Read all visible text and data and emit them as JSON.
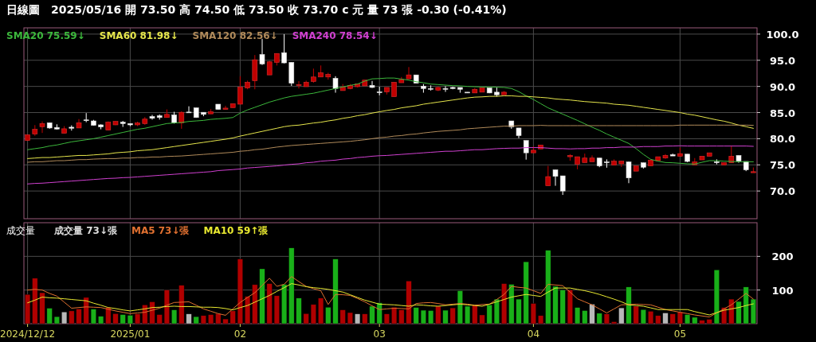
{
  "chart_data": [
    {
      "type": "candlestick",
      "title": "日線圖",
      "subtitle": "2025/05/16 開 73.50 高 74.50 低 73.50 收 73.70 c 元 量 73 張 -0.30 (-0.41%)",
      "categories": [
        "2024/12/12",
        null,
        null,
        null,
        null,
        null,
        null,
        null,
        null,
        null,
        null,
        null,
        null,
        null,
        "2025/01",
        null,
        null,
        null,
        null,
        null,
        null,
        null,
        null,
        null,
        null,
        null,
        null,
        null,
        null,
        "02",
        null,
        null,
        null,
        null,
        null,
        null,
        null,
        null,
        null,
        null,
        null,
        null,
        null,
        null,
        null,
        null,
        null,
        null,
        "03",
        null,
        null,
        null,
        null,
        null,
        null,
        null,
        null,
        null,
        null,
        null,
        null,
        null,
        null,
        null,
        null,
        null,
        null,
        null,
        null,
        "04",
        null,
        null,
        null,
        null,
        null,
        null,
        null,
        null,
        null,
        null,
        null,
        null,
        null,
        null,
        null,
        null,
        null,
        null,
        null,
        "05",
        null,
        null,
        null,
        null,
        null,
        null,
        null,
        null,
        null,
        null
      ],
      "ohlc": [
        [
          79.65,
          80.8,
          79.6,
          80.75
        ],
        [
          80.9,
          82.6,
          80.55,
          81.8
        ],
        [
          82.3,
          83.3,
          81.1,
          82.9
        ],
        [
          83.05,
          83.05,
          81.9,
          82.05
        ],
        [
          82.15,
          82.75,
          81.75,
          81.85
        ],
        [
          81.05,
          82.4,
          81.0,
          81.9
        ],
        [
          82.2,
          82.55,
          81.55,
          82.0
        ],
        [
          82.05,
          83.75,
          82.05,
          83.05
        ],
        [
          83.6,
          84.9,
          83.15,
          83.55
        ],
        [
          83.4,
          83.6,
          82.5,
          82.55
        ],
        [
          82.65,
          82.75,
          81.8,
          82.25
        ],
        [
          81.65,
          83.3,
          81.6,
          83.15
        ],
        [
          82.65,
          83.35,
          82.6,
          83.3
        ],
        [
          83.15,
          83.4,
          82.25,
          82.9
        ],
        [
          82.9,
          82.9,
          82.4,
          82.65
        ],
        [
          82.65,
          83.25,
          82.4,
          83.0
        ],
        [
          82.9,
          84.15,
          82.65,
          83.75
        ],
        [
          84.25,
          84.55,
          83.65,
          83.9
        ],
        [
          84.4,
          84.65,
          83.65,
          84.05
        ],
        [
          84.05,
          85.6,
          84.05,
          84.65
        ],
        [
          84.55,
          85.15,
          82.9,
          83.05
        ],
        [
          83.05,
          85.25,
          81.9,
          85.05
        ],
        [
          85.1,
          86.2,
          85.0,
          85.05
        ],
        [
          85.9,
          85.9,
          84.0,
          84.05
        ],
        [
          85.05,
          85.05,
          84.3,
          84.65
        ],
        [
          84.75,
          85.65,
          84.75,
          85.15
        ],
        [
          86.6,
          86.6,
          85.6,
          85.6
        ],
        [
          85.6,
          86.3,
          85.6,
          85.85
        ],
        [
          85.95,
          86.7,
          85.9,
          86.7
        ],
        [
          86.6,
          91.95,
          86.6,
          89.85
        ],
        [
          89.7,
          91.1,
          89.45,
          90.8
        ],
        [
          91.1,
          96.0,
          89.45,
          95.1
        ],
        [
          96.1,
          99.1,
          94.1,
          94.3
        ],
        [
          92.2,
          94.9,
          92.2,
          94.7
        ],
        [
          94.6,
          96.3,
          94.0,
          96.3
        ],
        [
          96.45,
          100.0,
          94.4,
          94.5
        ],
        [
          94.6,
          94.6,
          90.1,
          90.6
        ],
        [
          90.3,
          91.0,
          89.6,
          90.35
        ],
        [
          89.95,
          91.1,
          89.95,
          90.8
        ],
        [
          90.95,
          93.4,
          90.7,
          91.8
        ],
        [
          91.8,
          94.0,
          91.8,
          92.6
        ],
        [
          91.8,
          92.6,
          91.3,
          92.3
        ],
        [
          91.55,
          91.95,
          88.8,
          89.6
        ],
        [
          89.2,
          90.45,
          89.2,
          89.85
        ],
        [
          89.6,
          90.45,
          89.45,
          90.2
        ],
        [
          89.95,
          90.45,
          89.8,
          90.45
        ],
        [
          90.1,
          91.2,
          90.1,
          91.2
        ],
        [
          90.2,
          91.05,
          89.7,
          89.8
        ],
        [
          88.95,
          89.95,
          88.3,
          88.8
        ],
        [
          88.95,
          89.8,
          88.45,
          89.8
        ],
        [
          88.05,
          90.8,
          88.05,
          90.8
        ],
        [
          90.7,
          91.8,
          90.7,
          91.3
        ],
        [
          91.45,
          93.7,
          91.45,
          92.2
        ],
        [
          92.2,
          92.2,
          90.6,
          90.6
        ],
        [
          90.05,
          90.45,
          88.8,
          89.6
        ],
        [
          89.6,
          90.2,
          89.2,
          89.45
        ],
        [
          89.3,
          89.95,
          89.1,
          89.8
        ],
        [
          89.6,
          90.05,
          88.95,
          89.45
        ],
        [
          89.8,
          89.95,
          89.45,
          89.6
        ],
        [
          89.8,
          89.8,
          88.8,
          89.45
        ],
        [
          88.9,
          88.9,
          88.75,
          88.75
        ],
        [
          88.75,
          89.7,
          88.75,
          89.45
        ],
        [
          88.9,
          89.7,
          88.9,
          89.7
        ],
        [
          89.7,
          89.7,
          88.7,
          88.75
        ],
        [
          88.9,
          89.8,
          88.05,
          88.4
        ],
        [
          88.4,
          89.1,
          88.4,
          88.9
        ],
        [
          83.4,
          83.4,
          81.9,
          82.25
        ],
        [
          82.05,
          82.05,
          80.1,
          80.6
        ],
        [
          79.65,
          79.65,
          76.0,
          77.3
        ],
        [
          77.3,
          78.55,
          77.3,
          77.8
        ],
        [
          78.05,
          78.8,
          78.05,
          78.8
        ],
        [
          71.0,
          74.8,
          71.0,
          72.75
        ],
        [
          74.05,
          74.05,
          71.0,
          72.8
        ],
        [
          72.9,
          72.9,
          69.25,
          70.0
        ],
        [
          76.55,
          77.05,
          75.8,
          76.8
        ],
        [
          75.15,
          76.55,
          74.15,
          76.55
        ],
        [
          75.45,
          77.15,
          75.45,
          76.3
        ],
        [
          75.6,
          76.8,
          75.6,
          76.3
        ],
        [
          76.3,
          76.3,
          74.55,
          74.8
        ],
        [
          75.55,
          76.05,
          74.45,
          75.4
        ],
        [
          74.95,
          76.05,
          74.95,
          75.7
        ],
        [
          75.2,
          75.8,
          74.6,
          75.7
        ],
        [
          75.55,
          75.65,
          71.5,
          72.5
        ],
        [
          73.8,
          74.8,
          73.8,
          74.8
        ],
        [
          75.4,
          75.4,
          74.3,
          74.55
        ],
        [
          74.8,
          76.05,
          74.8,
          75.9
        ],
        [
          75.8,
          76.55,
          75.8,
          76.55
        ],
        [
          76.3,
          77.05,
          76.15,
          76.8
        ],
        [
          76.95,
          77.15,
          76.7,
          76.7
        ],
        [
          76.65,
          78.3,
          76.65,
          77.15
        ],
        [
          77.05,
          77.05,
          75.5,
          75.65
        ],
        [
          75.0,
          76.3,
          75.0,
          75.55
        ],
        [
          75.95,
          76.65,
          75.95,
          76.65
        ],
        [
          76.65,
          77.3,
          76.65,
          77.3
        ],
        [
          75.6,
          76.05,
          75.1,
          75.4
        ],
        [
          75.0,
          75.4,
          75.0,
          75.4
        ],
        [
          75.4,
          78.7,
          75.4,
          76.65
        ],
        [
          76.8,
          76.8,
          75.4,
          75.7
        ],
        [
          75.65,
          75.65,
          73.8,
          74.05
        ],
        [
          73.5,
          74.5,
          73.5,
          73.7
        ]
      ],
      "colors": [
        "#c00000",
        "#c00000",
        "#c00000",
        "#ffffff",
        "#ffffff",
        "#c00000",
        "#ffffff",
        "#c00000",
        "#ffffff",
        "#ffffff",
        "#ffffff",
        "#c00000",
        "#c00000",
        "#ffffff",
        "#ffffff",
        "#c00000",
        "#c00000",
        "#ffffff",
        "#ffffff",
        "#c00000",
        "#ffffff",
        "#c00000",
        "#ffffff",
        "#ffffff",
        "#ffffff",
        "#c00000",
        "#ffffff",
        "#c00000",
        "#c00000",
        "#c00000",
        "#c00000",
        "#c00000",
        "#ffffff",
        "#c00000",
        "#c00000",
        "#ffffff",
        "#ffffff",
        "#c00000",
        "#c00000",
        "#c00000",
        "#c00000",
        "#c00000",
        "#ffffff",
        "#c00000",
        "#c00000",
        "#c00000",
        "#c00000",
        "#ffffff",
        "#ffffff",
        "#c00000",
        "#c00000",
        "#c00000",
        "#c00000",
        "#ffffff",
        "#ffffff",
        "#ffffff",
        "#c00000",
        "#ffffff",
        "#ffffff",
        "#ffffff",
        "#ffffff",
        "#c00000",
        "#c00000",
        "#ffffff",
        "#ffffff",
        "#c00000",
        "#ffffff",
        "#ffffff",
        "#ffffff",
        "#c00000",
        "#c00000",
        "#c00000",
        "#ffffff",
        "#ffffff",
        "#c00000",
        "#c00000",
        "#c00000",
        "#c00000",
        "#ffffff",
        "#ffffff",
        "#c00000",
        "#c00000",
        "#ffffff",
        "#c00000",
        "#ffffff",
        "#c00000",
        "#c00000",
        "#c00000",
        "#ffffff",
        "#c00000",
        "#ffffff",
        "#c00000",
        "#c00000",
        "#c00000",
        "#ffffff",
        "#c00000",
        "#c00000",
        "#ffffff",
        "#ffffff",
        "#c00000"
      ],
      "series": [
        {
          "type": "line",
          "name": "SMA20 75.59↓",
          "color": "#3cb83c",
          "values": [
            77.9,
            78.1,
            78.3,
            78.6,
            78.8,
            79.1,
            79.4,
            79.6,
            79.8,
            80.0,
            80.3,
            80.6,
            80.9,
            81.2,
            81.5,
            81.8,
            82.0,
            82.3,
            82.6,
            82.9,
            83.0,
            83.1,
            83.3,
            83.4,
            83.5,
            83.7,
            83.8,
            83.9,
            84.05,
            84.9,
            85.5,
            86.0,
            86.5,
            87.0,
            87.4,
            87.8,
            88.1,
            88.3,
            88.5,
            88.7,
            89.0,
            89.3,
            89.6,
            89.9,
            90.2,
            90.45,
            91.0,
            91.45,
            91.5,
            91.6,
            91.6,
            91.4,
            91.2,
            90.9,
            90.7,
            90.45,
            90.35,
            90.25,
            90.15,
            90.1,
            90.0,
            89.95,
            89.9,
            89.9,
            89.85,
            89.8,
            89.6,
            89.0,
            88.2,
            87.5,
            86.7,
            85.9,
            85.3,
            84.7,
            84.1,
            83.5,
            82.85,
            82.2,
            81.6,
            80.9,
            80.3,
            79.7,
            79.1,
            78.1,
            77.0,
            76.05,
            75.7,
            75.45,
            75.4,
            75.3,
            75.2,
            75.15,
            75.5,
            75.8,
            75.8,
            75.7,
            75.65,
            75.6,
            75.6,
            75.59
          ]
        },
        {
          "type": "line",
          "name": "SMA60 81.98↓",
          "color": "#e6e64c",
          "values": [
            76.2,
            76.3,
            76.4,
            76.4,
            76.5,
            76.6,
            76.7,
            76.8,
            76.8,
            76.9,
            77.0,
            77.1,
            77.3,
            77.4,
            77.5,
            77.7,
            77.8,
            77.9,
            78.1,
            78.3,
            78.5,
            78.7,
            78.9,
            79.1,
            79.3,
            79.5,
            79.7,
            79.9,
            80.15,
            80.5,
            80.8,
            81.1,
            81.4,
            81.7,
            82.0,
            82.3,
            82.5,
            82.6,
            82.8,
            83.0,
            83.15,
            83.4,
            83.6,
            83.9,
            84.1,
            84.4,
            84.6,
            84.9,
            85.15,
            85.4,
            85.6,
            85.9,
            86.1,
            86.3,
            86.6,
            86.8,
            87.0,
            87.2,
            87.4,
            87.6,
            87.8,
            87.95,
            88.0,
            88.1,
            88.1,
            88.2,
            88.2,
            88.1,
            88.1,
            88.0,
            87.9,
            87.8,
            87.6,
            87.5,
            87.4,
            87.25,
            87.1,
            87.0,
            86.9,
            86.8,
            86.6,
            86.5,
            86.4,
            86.2,
            86.0,
            85.8,
            85.6,
            85.4,
            85.2,
            85.0,
            84.7,
            84.5,
            84.2,
            83.9,
            83.6,
            83.35,
            83.0,
            82.6,
            82.3,
            81.98
          ]
        },
        {
          "type": "line",
          "name": "SMA120 82.56↓",
          "color": "#b08a5a",
          "values": [
            75.5,
            75.6,
            75.6,
            75.7,
            75.8,
            75.8,
            75.9,
            76.0,
            76.0,
            76.1,
            76.15,
            76.2,
            76.2,
            76.3,
            76.3,
            76.4,
            76.4,
            76.5,
            76.5,
            76.6,
            76.65,
            76.7,
            76.8,
            76.9,
            77.0,
            77.1,
            77.2,
            77.3,
            77.4,
            77.6,
            77.7,
            77.9,
            78.0,
            78.2,
            78.4,
            78.55,
            78.7,
            78.8,
            78.9,
            79.0,
            79.1,
            79.2,
            79.3,
            79.4,
            79.5,
            79.65,
            79.8,
            80.0,
            80.2,
            80.3,
            80.5,
            80.6,
            80.8,
            80.9,
            81.1,
            81.25,
            81.4,
            81.5,
            81.6,
            81.7,
            81.9,
            82.0,
            82.1,
            82.2,
            82.3,
            82.4,
            82.4,
            82.5,
            82.5,
            82.5,
            82.55,
            82.5,
            82.5,
            82.5,
            82.5,
            82.5,
            82.5,
            82.5,
            82.5,
            82.5,
            82.5,
            82.5,
            82.5,
            82.5,
            82.5,
            82.5,
            82.5,
            82.5,
            82.5,
            82.6,
            82.6,
            82.6,
            82.6,
            82.6,
            82.6,
            82.6,
            82.6,
            82.6,
            82.6,
            82.56
          ]
        },
        {
          "type": "line",
          "name": "SMA240 78.54↓",
          "color": "#d040d0",
          "values": [
            71.35,
            71.45,
            71.5,
            71.6,
            71.7,
            71.8,
            71.9,
            72.0,
            72.1,
            72.2,
            72.3,
            72.4,
            72.45,
            72.55,
            72.6,
            72.7,
            72.8,
            72.9,
            73.0,
            73.1,
            73.2,
            73.3,
            73.4,
            73.5,
            73.6,
            73.7,
            73.9,
            74.0,
            74.1,
            74.2,
            74.4,
            74.5,
            74.6,
            74.7,
            74.8,
            74.95,
            75.1,
            75.2,
            75.4,
            75.5,
            75.7,
            75.8,
            75.9,
            76.1,
            76.2,
            76.4,
            76.5,
            76.65,
            76.75,
            76.8,
            76.9,
            77.0,
            77.1,
            77.2,
            77.3,
            77.4,
            77.5,
            77.6,
            77.6,
            77.7,
            77.8,
            77.9,
            77.9,
            78.0,
            78.1,
            78.15,
            78.2,
            78.2,
            78.3,
            78.3,
            78.3,
            78.2,
            78.1,
            78.1,
            78.05,
            78.1,
            78.1,
            78.2,
            78.2,
            78.3,
            78.3,
            78.4,
            78.4,
            78.4,
            78.5,
            78.5,
            78.5,
            78.6,
            78.6,
            78.65,
            78.6,
            78.6,
            78.6,
            78.6,
            78.6,
            78.6,
            78.6,
            78.6,
            78.6,
            78.54
          ]
        }
      ],
      "ylim": [
        64.7,
        101.2
      ],
      "yticks": [
        {
          "value": 70,
          "label": "70.0"
        },
        {
          "value": 75,
          "label": "75.0"
        },
        {
          "value": 80,
          "label": "80.0"
        },
        {
          "value": 85,
          "label": "85.0"
        },
        {
          "value": 90,
          "label": "90.0"
        },
        {
          "value": 95,
          "label": "95.0"
        },
        {
          "value": 100,
          "label": "100.0"
        }
      ],
      "grid": true,
      "legend": "top left",
      "tick_labels": "y"
    },
    {
      "type": "bar",
      "title": "成交量",
      "categories": [
        "2024/12/12",
        null,
        null,
        null,
        null,
        null,
        null,
        null,
        null,
        null,
        null,
        null,
        null,
        null,
        "2025/01",
        null,
        null,
        null,
        null,
        null,
        null,
        null,
        null,
        null,
        null,
        null,
        null,
        null,
        null,
        "02",
        null,
        null,
        null,
        null,
        null,
        null,
        null,
        null,
        null,
        null,
        null,
        null,
        null,
        null,
        null,
        null,
        null,
        null,
        "03",
        null,
        null,
        null,
        null,
        null,
        null,
        null,
        null,
        null,
        null,
        null,
        null,
        null,
        null,
        null,
        null,
        null,
        null,
        null,
        null,
        "04",
        null,
        null,
        null,
        null,
        null,
        null,
        null,
        null,
        null,
        null,
        null,
        null,
        null,
        null,
        null,
        null,
        null,
        null,
        null,
        "05",
        null,
        null,
        null,
        null,
        null,
        null,
        null,
        null,
        null,
        null
      ],
      "series": [
        {
          "name": "成交量 73↓張",
          "values": [
            87,
            135,
            92,
            46,
            21,
            35,
            38,
            44,
            78,
            43,
            22,
            48,
            30,
            27,
            25,
            29,
            56,
            65,
            27,
            100,
            41,
            114,
            29,
            21,
            24,
            27,
            30,
            14,
            38,
            192,
            81,
            116,
            163,
            119,
            83,
            117,
            225,
            76,
            30,
            57,
            76,
            49,
            192,
            41,
            33,
            29,
            29,
            52,
            62,
            29,
            49,
            41,
            127,
            48,
            40,
            39,
            52,
            40,
            47,
            98,
            52,
            55,
            26,
            56,
            73,
            119,
            117,
            73,
            184,
            60,
            24,
            218,
            111,
            100,
            100,
            48,
            39,
            58,
            31,
            29,
            6,
            47,
            109,
            52,
            42,
            37,
            24,
            32,
            29,
            35,
            27,
            19,
            10,
            13,
            160,
            48,
            73,
            66,
            109,
            73
          ],
          "colors": [
            "#b00000",
            "#b00000",
            "#b00000",
            "#19b019",
            "#19b019",
            "#b8b8b8",
            "#b00000",
            "#b00000",
            "#b00000",
            "#19b019",
            "#19b019",
            "#b00000",
            "#b00000",
            "#19b019",
            "#19b019",
            "#b00000",
            "#b00000",
            "#b00000",
            "#b00000",
            "#b00000",
            "#19b019",
            "#b00000",
            "#b8b8b8",
            "#19b019",
            "#b00000",
            "#b00000",
            "#b00000",
            "#b00000",
            "#b00000",
            "#b00000",
            "#b00000",
            "#b00000",
            "#19b019",
            "#b00000",
            "#b00000",
            "#19b019",
            "#19b019",
            "#19b019",
            "#b00000",
            "#b00000",
            "#b00000",
            "#19b019",
            "#19b019",
            "#b00000",
            "#b00000",
            "#b8b8b8",
            "#b00000",
            "#19b019",
            "#19b019",
            "#b00000",
            "#b00000",
            "#b00000",
            "#b00000",
            "#19b019",
            "#19b019",
            "#19b019",
            "#b00000",
            "#19b019",
            "#b00000",
            "#19b019",
            "#19b019",
            "#b00000",
            "#b00000",
            "#19b019",
            "#19b019",
            "#b00000",
            "#19b019",
            "#19b019",
            "#19b019",
            "#b00000",
            "#b00000",
            "#19b019",
            "#19b019",
            "#19b019",
            "#b00000",
            "#19b019",
            "#19b019",
            "#b8b8b8",
            "#19b019",
            "#b00000",
            "#b00000",
            "#b8b8b8",
            "#19b019",
            "#b00000",
            "#19b019",
            "#b00000",
            "#b00000",
            "#b8b8b8",
            "#b00000",
            "#b00000",
            "#19b019",
            "#19b019",
            "#b00000",
            "#b00000",
            "#19b019",
            "#b00000",
            "#b00000",
            "#19b019",
            "#19b019",
            "#19b019"
          ]
        },
        {
          "type": "line",
          "name": "MA5 73↓張",
          "color": "#e07030",
          "values": [
            100,
            102,
            100,
            90,
            82,
            64,
            46,
            48,
            50,
            49,
            48,
            43,
            38,
            34,
            30,
            32,
            34,
            40,
            46,
            55,
            63,
            64,
            65,
            55,
            44,
            37,
            30,
            25,
            44,
            63,
            78,
            92,
            114,
            135,
            111,
            117,
            140,
            125,
            111,
            104,
            98,
            57,
            87,
            86,
            84,
            75,
            65,
            53,
            42,
            44,
            46,
            45,
            44,
            60,
            62,
            63,
            60,
            56,
            58,
            60,
            58,
            55,
            57,
            58,
            72,
            87,
            111,
            108,
            106,
            98,
            90,
            117,
            115,
            113,
            94,
            74,
            65,
            56,
            44,
            32,
            44,
            56,
            57,
            58,
            57,
            56,
            49,
            42,
            38,
            34,
            30,
            26,
            23,
            20,
            32,
            44,
            56,
            73,
            90,
            73
          ]
        },
        {
          "type": "line",
          "name": "MA10 59↑張",
          "color": "#e8e830",
          "values": [
            62,
            70,
            79,
            77,
            76,
            74,
            72,
            70,
            68,
            61,
            55,
            48,
            45,
            41,
            38,
            41,
            44,
            48,
            49,
            51,
            52,
            51,
            51,
            50,
            49,
            49,
            48,
            45,
            41,
            48,
            54,
            64,
            74,
            84,
            96,
            107,
            119,
            115,
            110,
            107,
            105,
            102,
            98,
            94,
            86,
            78,
            70,
            64,
            58,
            57,
            56,
            54,
            52,
            56,
            55,
            53,
            52,
            54,
            56,
            58,
            56,
            54,
            52,
            58,
            65,
            72,
            79,
            83,
            87,
            84,
            81,
            94,
            106,
            106,
            106,
            102,
            98,
            93,
            87,
            80,
            73,
            65,
            56,
            54,
            52,
            47,
            42,
            42,
            42,
            42,
            42,
            36,
            31,
            26,
            33,
            40,
            44,
            48,
            54,
            59
          ]
        }
      ],
      "ylim": [
        0,
        300
      ],
      "yticks": [
        100,
        200
      ],
      "grid": true,
      "legend": "top left"
    }
  ]
}
